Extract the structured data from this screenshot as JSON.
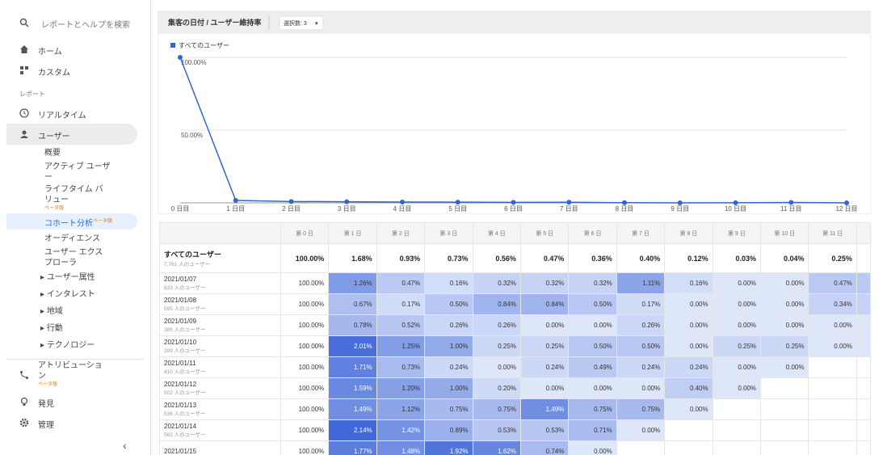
{
  "sidebar": {
    "search": "レポートとヘルプを検索",
    "home": "ホーム",
    "custom": "カスタム",
    "reports_section": "レポート",
    "realtime": "リアルタイム",
    "user": "ユーザー",
    "user_items": [
      {
        "label": "概要"
      },
      {
        "label": "アクティブ ユーザー"
      },
      {
        "label": "ライフタイム バリュー",
        "badge": "ベータ版"
      },
      {
        "label": "コホート分析",
        "badge": "ベータ版"
      },
      {
        "label": "オーディエンス"
      },
      {
        "label": "ユーザー エクスプローラ"
      }
    ],
    "user_groups": [
      "ユーザー属性",
      "インタレスト",
      "地域",
      "行動",
      "テクノロジー"
    ],
    "attribution": {
      "label": "アトリビューション",
      "badge": "ベータ版"
    },
    "discover": "発見",
    "admin": "管理"
  },
  "chart_data": {
    "type": "line",
    "title": "集客の日付 / ユーザー維持率",
    "selection": "選択数: 3",
    "categories": [
      "0 日目",
      "1 日目",
      "2 日目",
      "3 日目",
      "4 日目",
      "5 日目",
      "6 日目",
      "7 日目",
      "8 日目",
      "9 日目",
      "10 日目",
      "11 日目",
      "12 日目"
    ],
    "series": [
      {
        "name": "すべてのユーザー",
        "color": "#3366cc",
        "values": [
          100,
          1.68,
          0.93,
          0.73,
          0.56,
          0.47,
          0.36,
          0.4,
          0.12,
          0.03,
          0.04,
          0.25,
          0
        ]
      }
    ],
    "ylim": [
      0,
      100
    ],
    "yticks": [
      {
        "value": 50,
        "label": "50.00%"
      },
      {
        "value": 100,
        "label": "100.00%"
      }
    ],
    "grid": true
  },
  "table": {
    "columns": [
      "第 0 日",
      "第 1 日",
      "第 2 日",
      "第 3 日",
      "第 4 日",
      "第 5 日",
      "第 6 日",
      "第 7 日",
      "第 8 日",
      "第 9 日",
      "第 10 日",
      "第 11 日"
    ],
    "total": {
      "label": "すべてのユーザー",
      "users": "7,761 人のユーザー",
      "values": [
        "100.00%",
        "1.68%",
        "0.93%",
        "0.73%",
        "0.56%",
        "0.47%",
        "0.36%",
        "0.40%",
        "0.12%",
        "0.03%",
        "0.04%",
        "0.25%"
      ]
    },
    "rows": [
      {
        "date": "2021/01/07",
        "users": "633 人のユーザー",
        "values": [
          "100.00%",
          "1.26%",
          "0.47%",
          "0.16%",
          "0.32%",
          "0.32%",
          "0.32%",
          "1.11%",
          "0.16%",
          "0.00%",
          "0.00%",
          "0.47%"
        ]
      },
      {
        "date": "2021/01/08",
        "users": "595 人のユーザー",
        "values": [
          "100.00%",
          "0.67%",
          "0.17%",
          "0.50%",
          "0.84%",
          "0.84%",
          "0.50%",
          "0.17%",
          "0.00%",
          "0.00%",
          "0.00%",
          "0.34%"
        ]
      },
      {
        "date": "2021/01/09",
        "users": "385 人のユーザー",
        "values": [
          "100.00%",
          "0.78%",
          "0.52%",
          "0.26%",
          "0.26%",
          "0.00%",
          "0.00%",
          "0.26%",
          "0.00%",
          "0.00%",
          "0.00%",
          "0.00%"
        ]
      },
      {
        "date": "2021/01/10",
        "users": "399 人のユーザー",
        "values": [
          "100.00%",
          "2.01%",
          "1.25%",
          "1.00%",
          "0.25%",
          "0.25%",
          "0.50%",
          "0.50%",
          "0.00%",
          "0.25%",
          "0.25%",
          "0.00%"
        ]
      },
      {
        "date": "2021/01/11",
        "users": "410 人のユーザー",
        "values": [
          "100.00%",
          "1.71%",
          "0.73%",
          "0.24%",
          "0.00%",
          "0.24%",
          "0.49%",
          "0.24%",
          "0.24%",
          "0.00%",
          "0.00%"
        ]
      },
      {
        "date": "2021/01/12",
        "users": "502 人のユーザー",
        "values": [
          "100.00%",
          "1.59%",
          "1.20%",
          "1.00%",
          "0.20%",
          "0.00%",
          "0.00%",
          "0.00%",
          "0.40%",
          "0.00%"
        ]
      },
      {
        "date": "2021/01/13",
        "users": "536 人のユーザー",
        "values": [
          "100.00%",
          "1.49%",
          "1.12%",
          "0.75%",
          "0.75%",
          "1.49%",
          "0.75%",
          "0.75%",
          "0.00%"
        ]
      },
      {
        "date": "2021/01/14",
        "users": "562 人のユーザー",
        "values": [
          "100.00%",
          "2.14%",
          "1.42%",
          "0.89%",
          "0.53%",
          "0.53%",
          "0.71%",
          "0.00%"
        ]
      },
      {
        "date": "2021/01/15",
        "values": [
          "100.00%",
          "1.77%",
          "1.48%",
          "1.92%",
          "1.62%",
          "0.74%",
          "0.00%"
        ]
      }
    ]
  }
}
